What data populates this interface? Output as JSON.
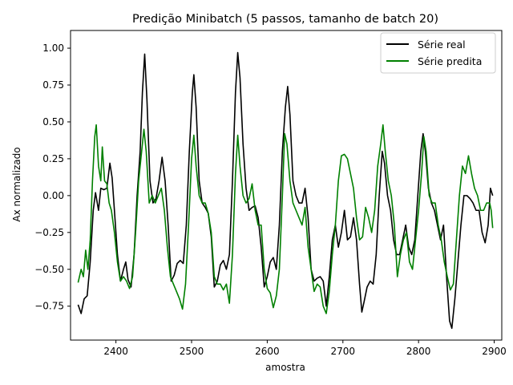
{
  "chart_data": {
    "type": "line",
    "title": "Predição Minibatch (5 passos, tamanho de batch 20)",
    "xlabel": "amostra",
    "ylabel": "Ax normalizado",
    "xlim": [
      2340,
      2910
    ],
    "ylim": [
      -0.98,
      1.12
    ],
    "xticks": [
      2400,
      2500,
      2600,
      2700,
      2800,
      2900
    ],
    "yticks": [
      -0.75,
      -0.5,
      -0.25,
      0.0,
      0.25,
      0.5,
      0.75,
      1.0
    ],
    "xtick_labels": [
      "2400",
      "2500",
      "2600",
      "2700",
      "2800",
      "2900"
    ],
    "ytick_labels": [
      "−0.75",
      "−0.50",
      "−0.25",
      "0.00",
      "0.25",
      "0.50",
      "0.75",
      "1.00"
    ],
    "legend_position": "top-right",
    "grid": false,
    "series": [
      {
        "name": "Série real",
        "color": "#000000",
        "points": [
          [
            2350,
            -0.74
          ],
          [
            2354,
            -0.8
          ],
          [
            2358,
            -0.7
          ],
          [
            2362,
            -0.68
          ],
          [
            2366,
            -0.45
          ],
          [
            2370,
            -0.1
          ],
          [
            2373,
            0.02
          ],
          [
            2377,
            -0.1
          ],
          [
            2380,
            0.05
          ],
          [
            2384,
            0.04
          ],
          [
            2388,
            0.05
          ],
          [
            2392,
            0.22
          ],
          [
            2395,
            0.12
          ],
          [
            2398,
            -0.1
          ],
          [
            2402,
            -0.4
          ],
          [
            2406,
            -0.58
          ],
          [
            2410,
            -0.5
          ],
          [
            2413,
            -0.45
          ],
          [
            2416,
            -0.57
          ],
          [
            2420,
            -0.62
          ],
          [
            2424,
            -0.4
          ],
          [
            2428,
            0.0
          ],
          [
            2432,
            0.3
          ],
          [
            2435,
            0.7
          ],
          [
            2438,
            0.96
          ],
          [
            2441,
            0.65
          ],
          [
            2445,
            0.1
          ],
          [
            2449,
            -0.05
          ],
          [
            2453,
            -0.02
          ],
          [
            2457,
            0.1
          ],
          [
            2461,
            0.26
          ],
          [
            2465,
            0.1
          ],
          [
            2469,
            -0.2
          ],
          [
            2473,
            -0.58
          ],
          [
            2477,
            -0.54
          ],
          [
            2481,
            -0.46
          ],
          [
            2485,
            -0.44
          ],
          [
            2489,
            -0.46
          ],
          [
            2493,
            -0.2
          ],
          [
            2497,
            0.3
          ],
          [
            2501,
            0.7
          ],
          [
            2503,
            0.82
          ],
          [
            2506,
            0.6
          ],
          [
            2510,
            0.1
          ],
          [
            2514,
            -0.05
          ],
          [
            2518,
            -0.08
          ],
          [
            2522,
            -0.12
          ],
          [
            2526,
            -0.28
          ],
          [
            2530,
            -0.62
          ],
          [
            2534,
            -0.58
          ],
          [
            2538,
            -0.47
          ],
          [
            2542,
            -0.44
          ],
          [
            2546,
            -0.5
          ],
          [
            2550,
            -0.4
          ],
          [
            2554,
            0.1
          ],
          [
            2558,
            0.7
          ],
          [
            2561,
            0.97
          ],
          [
            2564,
            0.8
          ],
          [
            2568,
            0.35
          ],
          [
            2572,
            0.05
          ],
          [
            2576,
            -0.1
          ],
          [
            2580,
            -0.08
          ],
          [
            2584,
            -0.07
          ],
          [
            2588,
            -0.15
          ],
          [
            2592,
            -0.35
          ],
          [
            2596,
            -0.62
          ],
          [
            2600,
            -0.55
          ],
          [
            2604,
            -0.45
          ],
          [
            2608,
            -0.42
          ],
          [
            2612,
            -0.5
          ],
          [
            2616,
            -0.2
          ],
          [
            2620,
            0.3
          ],
          [
            2624,
            0.6
          ],
          [
            2627,
            0.74
          ],
          [
            2630,
            0.55
          ],
          [
            2634,
            0.1
          ],
          [
            2638,
            0.0
          ],
          [
            2642,
            -0.05
          ],
          [
            2646,
            -0.05
          ],
          [
            2650,
            0.05
          ],
          [
            2654,
            -0.15
          ],
          [
            2658,
            -0.5
          ],
          [
            2662,
            -0.58
          ],
          [
            2666,
            -0.56
          ],
          [
            2670,
            -0.55
          ],
          [
            2674,
            -0.58
          ],
          [
            2678,
            -0.75
          ],
          [
            2682,
            -0.55
          ],
          [
            2686,
            -0.3
          ],
          [
            2690,
            -0.2
          ],
          [
            2694,
            -0.35
          ],
          [
            2698,
            -0.25
          ],
          [
            2702,
            -0.1
          ],
          [
            2706,
            -0.3
          ],
          [
            2710,
            -0.28
          ],
          [
            2714,
            -0.15
          ],
          [
            2718,
            -0.3
          ],
          [
            2722,
            -0.6
          ],
          [
            2725,
            -0.79
          ],
          [
            2728,
            -0.72
          ],
          [
            2732,
            -0.62
          ],
          [
            2736,
            -0.58
          ],
          [
            2740,
            -0.6
          ],
          [
            2744,
            -0.4
          ],
          [
            2748,
            0.0
          ],
          [
            2752,
            0.3
          ],
          [
            2755,
            0.22
          ],
          [
            2759,
            0.0
          ],
          [
            2763,
            -0.1
          ],
          [
            2767,
            -0.3
          ],
          [
            2771,
            -0.4
          ],
          [
            2775,
            -0.4
          ],
          [
            2779,
            -0.3
          ],
          [
            2783,
            -0.2
          ],
          [
            2787,
            -0.35
          ],
          [
            2791,
            -0.4
          ],
          [
            2795,
            -0.3
          ],
          [
            2799,
            0.0
          ],
          [
            2803,
            0.3
          ],
          [
            2806,
            0.42
          ],
          [
            2809,
            0.3
          ],
          [
            2813,
            0.05
          ],
          [
            2817,
            -0.05
          ],
          [
            2821,
            -0.1
          ],
          [
            2825,
            -0.2
          ],
          [
            2829,
            -0.3
          ],
          [
            2833,
            -0.2
          ],
          [
            2837,
            -0.55
          ],
          [
            2841,
            -0.85
          ],
          [
            2844,
            -0.9
          ],
          [
            2848,
            -0.7
          ],
          [
            2852,
            -0.45
          ],
          [
            2856,
            -0.2
          ],
          [
            2860,
            0.0
          ],
          [
            2864,
            0.0
          ],
          [
            2868,
            -0.02
          ],
          [
            2872,
            -0.05
          ],
          [
            2876,
            -0.1
          ],
          [
            2880,
            -0.1
          ],
          [
            2884,
            -0.25
          ],
          [
            2888,
            -0.32
          ],
          [
            2892,
            -0.2
          ],
          [
            2895,
            0.05
          ],
          [
            2898,
            0.0
          ]
        ]
      },
      {
        "name": "Série predita",
        "color": "#008000",
        "points": [
          [
            2350,
            -0.59
          ],
          [
            2354,
            -0.5
          ],
          [
            2357,
            -0.55
          ],
          [
            2360,
            -0.37
          ],
          [
            2363,
            -0.5
          ],
          [
            2366,
            -0.3
          ],
          [
            2369,
            0.1
          ],
          [
            2372,
            0.4
          ],
          [
            2374,
            0.48
          ],
          [
            2377,
            0.2
          ],
          [
            2380,
            0.1
          ],
          [
            2382,
            0.33
          ],
          [
            2385,
            0.1
          ],
          [
            2388,
            0.08
          ],
          [
            2391,
            -0.05
          ],
          [
            2394,
            -0.1
          ],
          [
            2398,
            -0.25
          ],
          [
            2402,
            -0.45
          ],
          [
            2406,
            -0.58
          ],
          [
            2410,
            -0.55
          ],
          [
            2414,
            -0.58
          ],
          [
            2418,
            -0.63
          ],
          [
            2422,
            -0.55
          ],
          [
            2426,
            -0.25
          ],
          [
            2430,
            0.1
          ],
          [
            2434,
            0.3
          ],
          [
            2437,
            0.45
          ],
          [
            2440,
            0.3
          ],
          [
            2444,
            -0.05
          ],
          [
            2448,
            0.0
          ],
          [
            2452,
            -0.05
          ],
          [
            2456,
            0.0
          ],
          [
            2460,
            0.05
          ],
          [
            2464,
            -0.1
          ],
          [
            2468,
            -0.35
          ],
          [
            2472,
            -0.55
          ],
          [
            2476,
            -0.6
          ],
          [
            2480,
            -0.65
          ],
          [
            2484,
            -0.7
          ],
          [
            2488,
            -0.77
          ],
          [
            2492,
            -0.6
          ],
          [
            2496,
            -0.2
          ],
          [
            2500,
            0.25
          ],
          [
            2503,
            0.41
          ],
          [
            2506,
            0.2
          ],
          [
            2510,
            0.0
          ],
          [
            2514,
            -0.05
          ],
          [
            2518,
            -0.05
          ],
          [
            2522,
            -0.12
          ],
          [
            2526,
            -0.25
          ],
          [
            2530,
            -0.55
          ],
          [
            2534,
            -0.6
          ],
          [
            2538,
            -0.6
          ],
          [
            2542,
            -0.64
          ],
          [
            2546,
            -0.6
          ],
          [
            2550,
            -0.73
          ],
          [
            2554,
            -0.4
          ],
          [
            2558,
            0.15
          ],
          [
            2561,
            0.41
          ],
          [
            2564,
            0.2
          ],
          [
            2568,
            0.0
          ],
          [
            2572,
            -0.05
          ],
          [
            2576,
            -0.02
          ],
          [
            2580,
            0.08
          ],
          [
            2584,
            -0.1
          ],
          [
            2588,
            -0.2
          ],
          [
            2592,
            -0.2
          ],
          [
            2596,
            -0.5
          ],
          [
            2600,
            -0.63
          ],
          [
            2604,
            -0.66
          ],
          [
            2608,
            -0.76
          ],
          [
            2612,
            -0.68
          ],
          [
            2616,
            -0.5
          ],
          [
            2620,
            0.0
          ],
          [
            2623,
            0.42
          ],
          [
            2626,
            0.35
          ],
          [
            2630,
            0.1
          ],
          [
            2634,
            -0.05
          ],
          [
            2638,
            -0.1
          ],
          [
            2642,
            -0.15
          ],
          [
            2646,
            -0.2
          ],
          [
            2650,
            -0.08
          ],
          [
            2654,
            -0.35
          ],
          [
            2658,
            -0.5
          ],
          [
            2662,
            -0.65
          ],
          [
            2666,
            -0.6
          ],
          [
            2670,
            -0.62
          ],
          [
            2674,
            -0.75
          ],
          [
            2678,
            -0.8
          ],
          [
            2682,
            -0.65
          ],
          [
            2686,
            -0.4
          ],
          [
            2690,
            -0.2
          ],
          [
            2694,
            0.1
          ],
          [
            2698,
            0.27
          ],
          [
            2702,
            0.28
          ],
          [
            2706,
            0.25
          ],
          [
            2710,
            0.15
          ],
          [
            2714,
            0.05
          ],
          [
            2718,
            -0.15
          ],
          [
            2722,
            -0.3
          ],
          [
            2726,
            -0.28
          ],
          [
            2730,
            -0.08
          ],
          [
            2734,
            -0.15
          ],
          [
            2738,
            -0.25
          ],
          [
            2742,
            -0.1
          ],
          [
            2746,
            0.2
          ],
          [
            2750,
            0.35
          ],
          [
            2753,
            0.48
          ],
          [
            2756,
            0.3
          ],
          [
            2760,
            0.1
          ],
          [
            2764,
            0.0
          ],
          [
            2768,
            -0.2
          ],
          [
            2772,
            -0.55
          ],
          [
            2776,
            -0.4
          ],
          [
            2780,
            -0.3
          ],
          [
            2784,
            -0.25
          ],
          [
            2788,
            -0.45
          ],
          [
            2792,
            -0.5
          ],
          [
            2796,
            -0.3
          ],
          [
            2800,
            -0.1
          ],
          [
            2804,
            0.15
          ],
          [
            2807,
            0.4
          ],
          [
            2810,
            0.3
          ],
          [
            2814,
            0.0
          ],
          [
            2818,
            -0.05
          ],
          [
            2822,
            -0.05
          ],
          [
            2826,
            -0.2
          ],
          [
            2830,
            -0.3
          ],
          [
            2834,
            -0.45
          ],
          [
            2838,
            -0.55
          ],
          [
            2842,
            -0.64
          ],
          [
            2846,
            -0.6
          ],
          [
            2850,
            -0.3
          ],
          [
            2854,
            0.0
          ],
          [
            2858,
            0.2
          ],
          [
            2862,
            0.15
          ],
          [
            2866,
            0.27
          ],
          [
            2870,
            0.15
          ],
          [
            2874,
            0.05
          ],
          [
            2878,
            0.0
          ],
          [
            2882,
            -0.1
          ],
          [
            2886,
            -0.1
          ],
          [
            2890,
            -0.05
          ],
          [
            2894,
            -0.05
          ],
          [
            2896,
            -0.1
          ],
          [
            2898,
            -0.22
          ]
        ]
      }
    ]
  }
}
